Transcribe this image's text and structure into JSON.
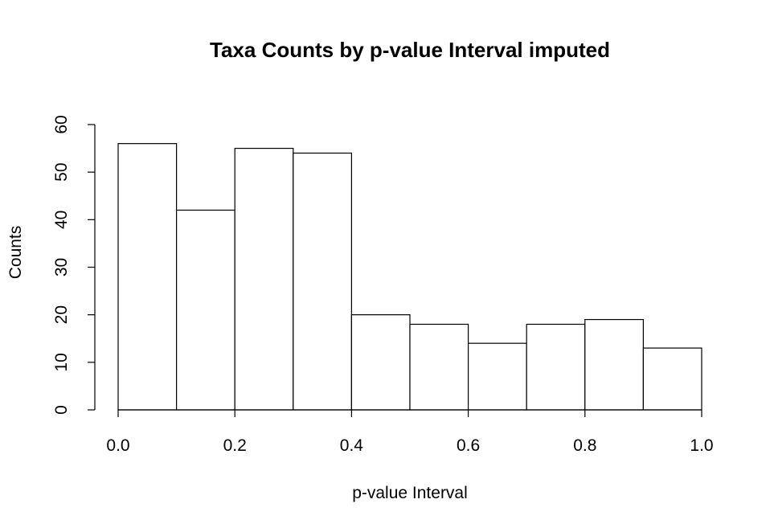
{
  "chart_data": {
    "type": "bar",
    "title": "Taxa Counts by p-value Interval imputed",
    "xlabel": "p-value Interval",
    "ylabel": "Counts",
    "bins": [
      {
        "start": 0.0,
        "end": 0.1,
        "count": 56
      },
      {
        "start": 0.1,
        "end": 0.2,
        "count": 42
      },
      {
        "start": 0.2,
        "end": 0.3,
        "count": 55
      },
      {
        "start": 0.3,
        "end": 0.4,
        "count": 54
      },
      {
        "start": 0.4,
        "end": 0.5,
        "count": 20
      },
      {
        "start": 0.5,
        "end": 0.6,
        "count": 18
      },
      {
        "start": 0.6,
        "end": 0.7,
        "count": 14
      },
      {
        "start": 0.7,
        "end": 0.8,
        "count": 18
      },
      {
        "start": 0.8,
        "end": 0.9,
        "count": 19
      },
      {
        "start": 0.9,
        "end": 1.0,
        "count": 13
      }
    ],
    "xlim": [
      0.0,
      1.0
    ],
    "ylim": [
      0,
      60
    ],
    "xticks": [
      "0.0",
      "0.2",
      "0.4",
      "0.6",
      "0.8",
      "1.0"
    ],
    "yticks": [
      "0",
      "10",
      "20",
      "30",
      "40",
      "50",
      "60"
    ],
    "grid": false,
    "bar_fill": "#ffffff",
    "bar_stroke": "#000000"
  }
}
